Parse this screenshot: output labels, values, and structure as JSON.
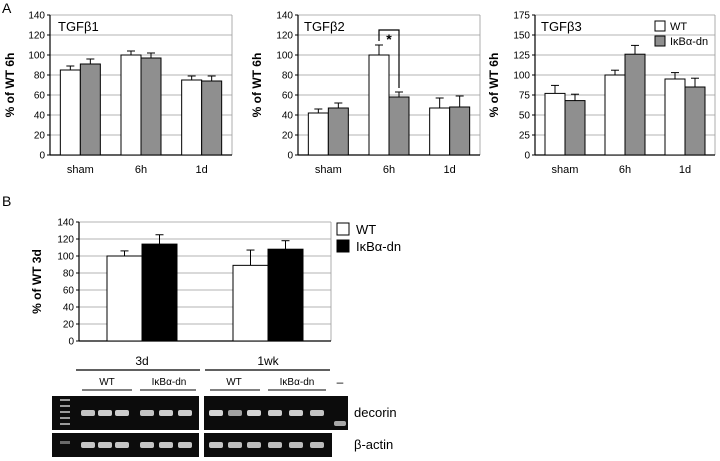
{
  "panels": {
    "A": {
      "label": "A"
    },
    "B": {
      "label": "B"
    }
  },
  "colors": {
    "wt": "#ffffff",
    "dn_gray": "#8f8f8f",
    "dn_black": "#000000",
    "axis": "#000000",
    "grid": "#9a9a9a",
    "gel_bg": "#0c0c0c",
    "band": "#bdbdbd"
  },
  "chart_data": [
    {
      "type": "bar",
      "title": "TGFβ1",
      "ylabel": "% of WT 6h",
      "categories": [
        "sham",
        "6h",
        "1d"
      ],
      "ylim": [
        0,
        140
      ],
      "yticks": [
        "0",
        "20",
        "40",
        "60",
        "80",
        "100",
        "120",
        "140"
      ],
      "grid": true,
      "series": [
        {
          "name": "WT",
          "values": [
            85,
            100,
            75
          ],
          "errors": [
            4,
            4,
            4
          ]
        },
        {
          "name": "IκBα-dn",
          "values": [
            91,
            97,
            74
          ],
          "errors": [
            5,
            5,
            5
          ]
        }
      ]
    },
    {
      "type": "bar",
      "title": "TGFβ2",
      "ylabel": "% of WT 6h",
      "categories": [
        "sham",
        "6h",
        "1d"
      ],
      "ylim": [
        0,
        140
      ],
      "yticks": [
        "0",
        "20",
        "40",
        "60",
        "80",
        "100",
        "120",
        "140"
      ],
      "grid": true,
      "significance": "*",
      "series": [
        {
          "name": "WT",
          "values": [
            42,
            100,
            47
          ],
          "errors": [
            4,
            10,
            10
          ]
        },
        {
          "name": "IκBα-dn",
          "values": [
            47,
            58,
            48
          ],
          "errors": [
            5,
            5,
            11
          ]
        }
      ]
    },
    {
      "type": "bar",
      "title": "TGFβ3",
      "ylabel": "% of WT 6h",
      "categories": [
        "sham",
        "6h",
        "1d"
      ],
      "ylim": [
        0,
        175
      ],
      "yticks": [
        "0",
        "25",
        "50",
        "75",
        "100",
        "125",
        "150",
        "175"
      ],
      "grid": true,
      "legend": {
        "placement": "top-right",
        "entries": [
          "WT",
          "IκBα-dn"
        ]
      },
      "series": [
        {
          "name": "WT",
          "values": [
            77,
            100,
            95
          ],
          "errors": [
            10,
            6,
            8
          ]
        },
        {
          "name": "IκBα-dn",
          "values": [
            68,
            126,
            85
          ],
          "errors": [
            8,
            11,
            11
          ]
        }
      ]
    },
    {
      "type": "bar",
      "ylabel": "% of WT 3d",
      "categories": [
        "3d",
        "1wk"
      ],
      "ylim": [
        0,
        140
      ],
      "yticks": [
        "0",
        "20",
        "40",
        "60",
        "80",
        "100",
        "120",
        "140"
      ],
      "grid": true,
      "legend": {
        "placement": "right",
        "entries": [
          "WT",
          "IκBα-dn"
        ]
      },
      "series": [
        {
          "name": "WT",
          "values": [
            100,
            89
          ],
          "errors": [
            6,
            18
          ]
        },
        {
          "name": "IκBα-dn",
          "values": [
            114,
            108
          ],
          "errors": [
            11,
            10
          ]
        }
      ]
    }
  ],
  "gel": {
    "groups": [
      "3d",
      "1wk"
    ],
    "subgroups": [
      "WT",
      "IκBα-dn",
      "WT",
      "IκBα-dn"
    ],
    "neg_label": "–",
    "rows": [
      "decorin",
      "β-actin"
    ],
    "decorin_intensity": [
      0.8,
      0.85,
      0.85,
      0.8,
      0.85,
      0.85,
      0.9,
      0.6,
      0.9,
      0.85,
      0.85,
      0.8
    ],
    "actin_intensity": [
      0.8,
      0.8,
      0.8,
      0.8,
      0.8,
      0.8,
      0.8,
      0.75,
      0.75,
      0.75,
      0.75,
      0.75
    ]
  }
}
